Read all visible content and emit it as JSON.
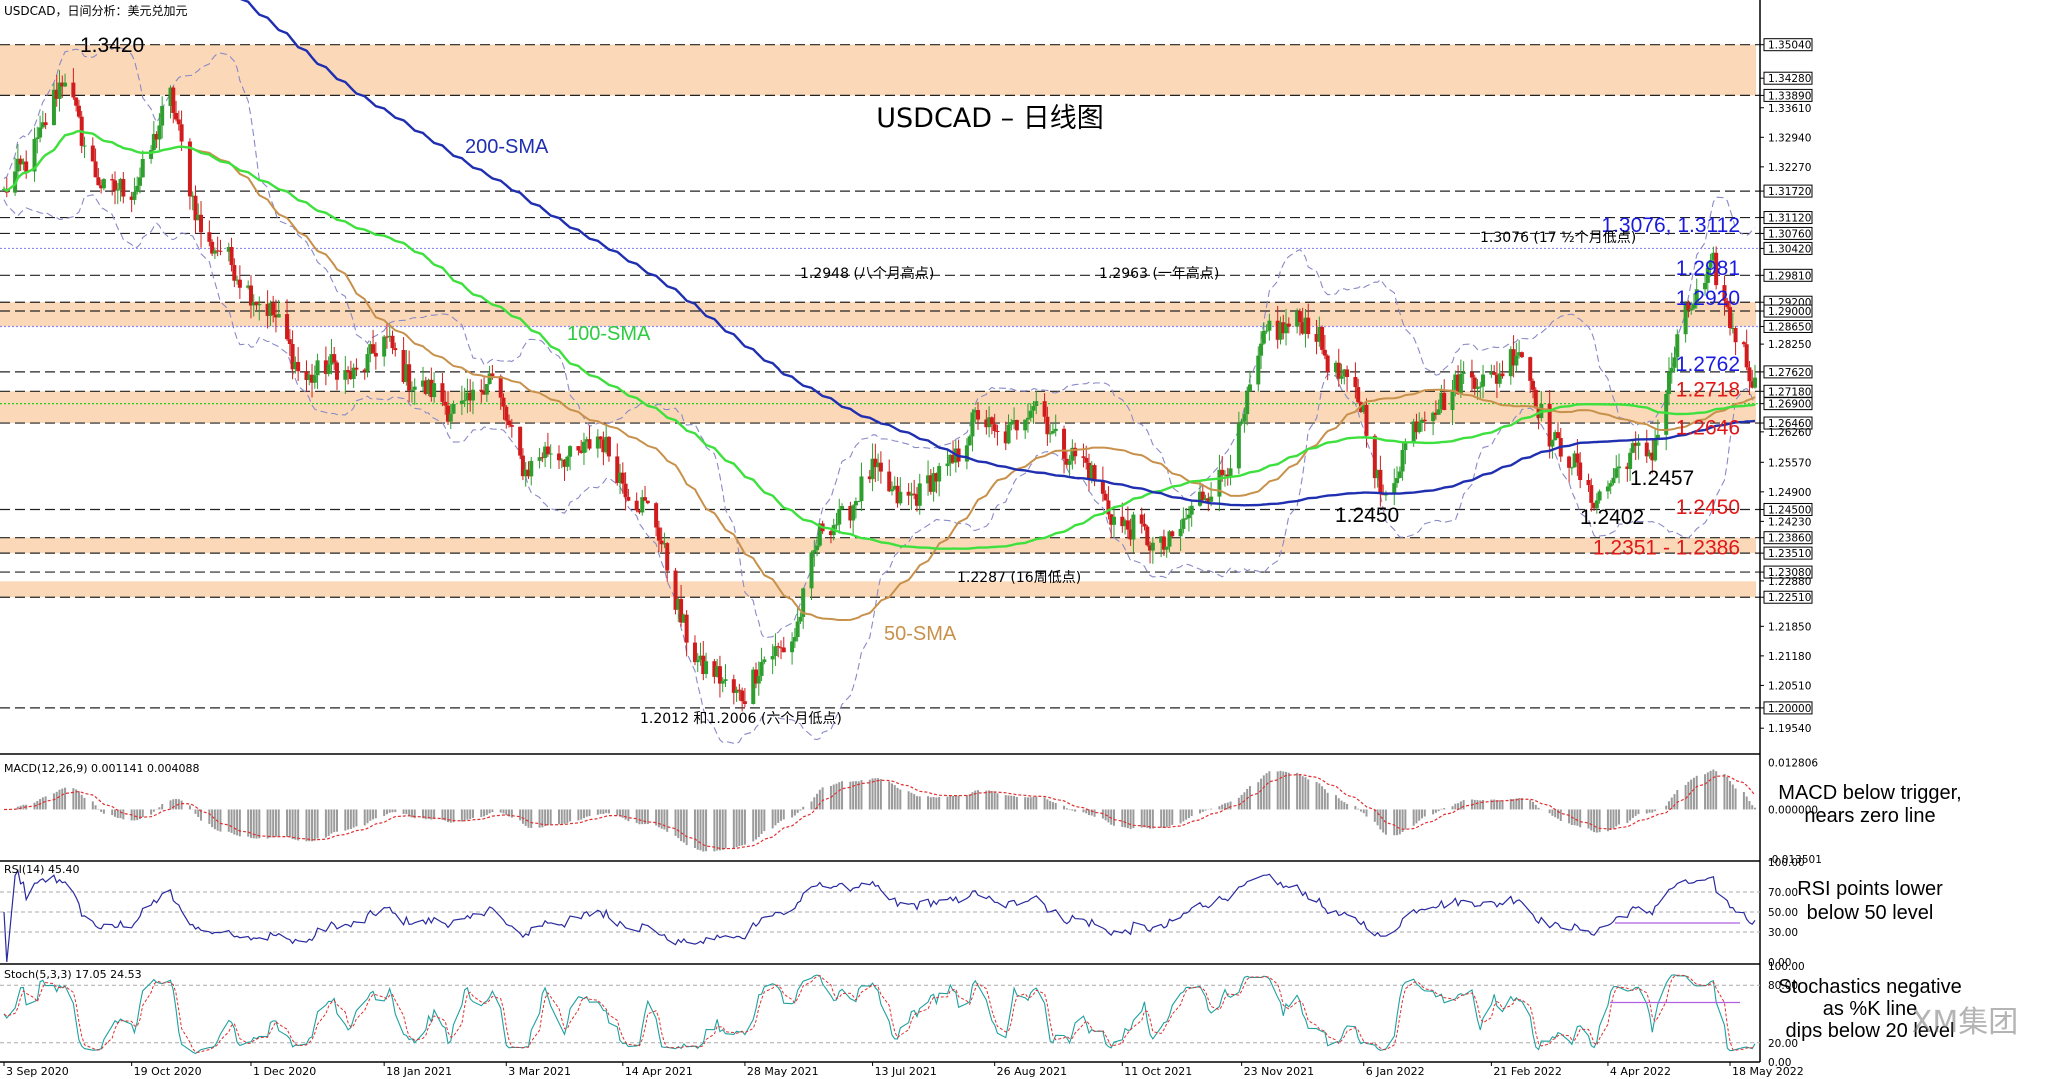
{
  "header": {
    "symbol_info": "USDCAD，日间分析：美元兑加元"
  },
  "main": {
    "title": "USDCAD – 日线图",
    "watermark": "XM集团",
    "sma_labels": [
      {
        "id": "sma200",
        "text": "200-SMA",
        "color": "#1f2fb0"
      },
      {
        "id": "sma100",
        "text": "100-SMA",
        "color": "#2ecc40"
      },
      {
        "id": "sma50",
        "text": "50-SMA",
        "color": "#c8914b"
      }
    ],
    "colors": {
      "bull": "#2e9e2e",
      "bear": "#d01c1c",
      "sma200": "#1f2fb0",
      "sma100": "#3ee03e",
      "sma50": "#c8914b",
      "band": "#8a8ac8",
      "zone": "#fbd9b8",
      "blue_text": "#1a1ae0",
      "red_text": "#e01818"
    }
  },
  "chart_data": [
    {
      "type": "candlestick",
      "name": "price",
      "ylim": [
        1.19,
        1.356
      ],
      "x_tick_labels": [
        "3 Sep 2020",
        "19 Oct 2020",
        "1 Dec 2020",
        "18 Jan 2021",
        "3 Mar 2021",
        "14 Apr 2021",
        "28 May 2021",
        "13 Jul 2021",
        "26 Aug 2021",
        "11 Oct 2021",
        "23 Nov 2021",
        "6 Jan 2022",
        "21 Feb 2022",
        "4 Apr 2022",
        "18 May 2022"
      ],
      "y_axis_labels": [
        "1.35040",
        "1.34280",
        "1.33890",
        "1.33610",
        "1.32940",
        "1.32270",
        "1.31720",
        "1.31120",
        "1.30760",
        "1.30420",
        "1.29810",
        "1.29200",
        "1.29000",
        "1.28650",
        "1.28250",
        "1.27620",
        "1.27180",
        "1.26900",
        "1.26460",
        "1.26260",
        "1.25570",
        "1.24900",
        "1.24500",
        "1.24230",
        "1.23860",
        "1.23510",
        "1.23080",
        "1.22880",
        "1.22510",
        "1.21850",
        "1.21180",
        "1.20510",
        "1.20000",
        "1.19540"
      ],
      "horizontal_levels": [
        1.3504,
        1.3389,
        1.3172,
        1.3112,
        1.3076,
        1.3042,
        1.2981,
        1.292,
        1.29,
        1.2865,
        1.2762,
        1.2718,
        1.269,
        1.2646,
        1.245,
        1.2386,
        1.2351,
        1.2308,
        1.2251,
        1.2
      ],
      "zones": [
        [
          1.3389,
          1.3504
        ],
        [
          1.2865,
          1.292
        ],
        [
          1.2646,
          1.2718
        ],
        [
          1.2351,
          1.2386
        ],
        [
          1.2251,
          1.2287
        ]
      ],
      "right_labels": [
        {
          "text": "1.3076, 1.3112",
          "color": "blue",
          "y": 1.3095
        },
        {
          "text": "1.2981",
          "color": "blue",
          "y": 1.2998
        },
        {
          "text": "1.2920",
          "color": "blue",
          "y": 1.293
        },
        {
          "text": "1.2762",
          "color": "blue",
          "y": 1.278
        },
        {
          "text": "1.2718",
          "color": "red",
          "y": 1.2722
        },
        {
          "text": "1.2646",
          "color": "red",
          "y": 1.2636
        },
        {
          "text": "1.2450",
          "color": "red",
          "y": 1.2456
        },
        {
          "text": "1.2351 - 1.2386",
          "color": "red",
          "y": 1.2364
        }
      ],
      "annotations": [
        {
          "text": "1.3420",
          "x": "2020-09-25",
          "y": 1.342
        },
        {
          "text": "1.2948 (八个月高点)",
          "x": "2021-06-20",
          "y": 1.2948
        },
        {
          "text": "1.2963 (一年高点)",
          "x": "2021-10-25",
          "y": 1.2963
        },
        {
          "text": "1.3076 (17 ½个月低点)",
          "x": "2022-02-10",
          "y": 1.305
        },
        {
          "text": "1.2450",
          "x": "2022-01-03",
          "y": 1.245
        },
        {
          "text": "1.2402",
          "x": "2022-03-30",
          "y": 1.2402
        },
        {
          "text": "1.2457",
          "x": "2022-04-20",
          "y": 1.254
        },
        {
          "text": "1.2287 (16周低点)",
          "x": "2021-07-15",
          "y": 1.2287
        },
        {
          "text": "1.2012 和1.2006 (六个月低点)",
          "x": "2021-05-02",
          "y": 1.2012
        }
      ],
      "anchors": [
        [
          "2020-09-03",
          1.315
        ],
        [
          "2020-09-25",
          1.342
        ],
        [
          "2020-10-10",
          1.315
        ],
        [
          "2020-10-19",
          1.318
        ],
        [
          "2020-11-02",
          1.337
        ],
        [
          "2020-11-15",
          1.305
        ],
        [
          "2020-12-01",
          1.296
        ],
        [
          "2020-12-20",
          1.276
        ],
        [
          "2021-01-05",
          1.276
        ],
        [
          "2021-01-18",
          1.282
        ],
        [
          "2021-02-10",
          1.267
        ],
        [
          "2021-02-25",
          1.274
        ],
        [
          "2021-03-10",
          1.255
        ],
        [
          "2021-03-25",
          1.258
        ],
        [
          "2021-04-05",
          1.26
        ],
        [
          "2021-04-14",
          1.253
        ],
        [
          "2021-04-25",
          1.242
        ],
        [
          "2021-05-12",
          1.208
        ],
        [
          "2021-05-28",
          1.204
        ],
        [
          "2021-06-15",
          1.218
        ],
        [
          "2021-06-25",
          1.24
        ],
        [
          "2021-07-13",
          1.252
        ],
        [
          "2021-07-30",
          1.247
        ],
        [
          "2021-08-20",
          1.265
        ],
        [
          "2021-08-26",
          1.262
        ],
        [
          "2021-09-10",
          1.268
        ],
        [
          "2021-09-25",
          1.256
        ],
        [
          "2021-10-11",
          1.242
        ],
        [
          "2021-10-22",
          1.236
        ],
        [
          "2021-11-05",
          1.243
        ],
        [
          "2021-11-23",
          1.262
        ],
        [
          "2021-12-03",
          1.288
        ],
        [
          "2021-12-20",
          1.285
        ],
        [
          "2022-01-06",
          1.266
        ],
        [
          "2022-01-13",
          1.248
        ],
        [
          "2022-01-30",
          1.27
        ],
        [
          "2022-02-21",
          1.276
        ],
        [
          "2022-03-03",
          1.28
        ],
        [
          "2022-03-15",
          1.262
        ],
        [
          "2022-03-28",
          1.248
        ],
        [
          "2022-04-05",
          1.252
        ],
        [
          "2022-04-20",
          1.26
        ],
        [
          "2022-05-01",
          1.286
        ],
        [
          "2022-05-12",
          1.302
        ],
        [
          "2022-05-18",
          1.286
        ],
        [
          "2022-05-27",
          1.274
        ]
      ]
    },
    {
      "type": "histogram",
      "name": "macd",
      "label": "MACD(12,26,9) 0.001141 0.004088",
      "ylim": [
        -0.0138,
        0.0135
      ],
      "y_axis_labels": [
        "0.012806",
        "0.000000",
        "-0.013501"
      ],
      "note": [
        "MACD below trigger,",
        "nears zero line"
      ]
    },
    {
      "type": "line",
      "name": "rsi",
      "label": "RSI(14) 45.40",
      "ylim": [
        0,
        100
      ],
      "y_axis_labels": [
        "100.00",
        "70.00",
        "50.00",
        "30.00",
        "0.00"
      ],
      "note": [
        "RSI points lower",
        "below 50 level"
      ]
    },
    {
      "type": "line",
      "name": "stoch",
      "label": "Stoch(5,3,3) 17.05 24.53",
      "ylim": [
        0,
        100
      ],
      "y_axis_labels": [
        "100.00",
        "80.00",
        "20.00",
        "0.00"
      ],
      "note": [
        "Stochastics negative",
        "as %K line",
        "dips below 20 level"
      ]
    }
  ]
}
